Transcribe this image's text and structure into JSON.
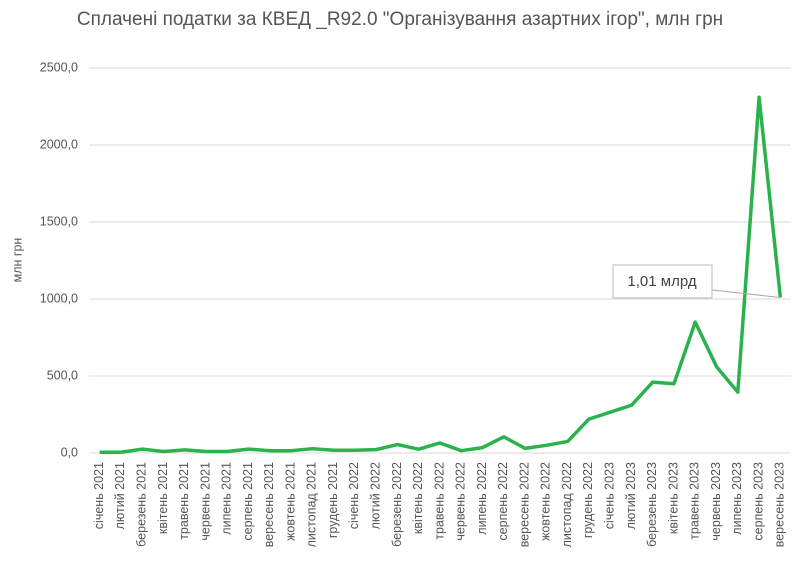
{
  "chart_data": {
    "type": "line",
    "title": "Сплачені податки за КВЕД _R92.0 \"Організування азартних ігор\", млн грн",
    "y_label": "млн грн",
    "annotation": "1,01 млрд",
    "categories": [
      "січень 2021",
      "лютий 2021",
      "березень 2021",
      "квітень 2021",
      "травень 2021",
      "червень 2021",
      "липень 2021",
      "серпень 2021",
      "вересень 2021",
      "жовтень 2021",
      "листопад 2021",
      "грудень 2021",
      "січень 2022",
      "лютий 2022",
      "березень 2022",
      "квітень 2022",
      "травень 2022",
      "червень 2022",
      "липень 2022",
      "серпень 2022",
      "вересень 2022",
      "жовтень 2022",
      "листопад 2022",
      "грудень 2022",
      "січень 2023",
      "лютий 2023",
      "березень 2023",
      "квітень 2023",
      "травень 2023",
      "червень 2023",
      "липень 2023",
      "серпень 2023",
      "вересень 2023"
    ],
    "series": [
      {
        "color": "#2bb24c",
        "values": [
          5,
          5,
          25,
          10,
          20,
          10,
          10,
          25,
          15,
          15,
          28,
          18,
          18,
          22,
          55,
          25,
          65,
          15,
          35,
          105,
          30,
          50,
          75,
          220,
          265,
          310,
          460,
          450,
          850,
          560,
          395,
          2310,
          1010
        ]
      }
    ],
    "ylim": [
      0,
      2500
    ],
    "yticks": [
      {
        "value": 0,
        "label": "0,0"
      },
      {
        "value": 500,
        "label": "500,0"
      },
      {
        "value": 1000,
        "label": "1000,0"
      },
      {
        "value": 1500,
        "label": "1500,0"
      },
      {
        "value": 2000,
        "label": "2000,0"
      },
      {
        "value": 2500,
        "label": "2500,0"
      }
    ],
    "grid": true
  }
}
